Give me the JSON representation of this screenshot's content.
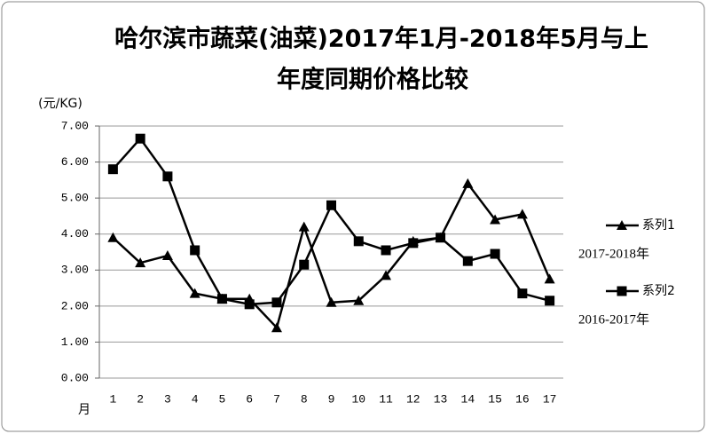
{
  "chart_data": {
    "type": "line",
    "title": [
      "哈尔滨市蔬菜(油菜)2017年1月-2018年5月与上",
      "年度同期价格比较"
    ],
    "y_label": "(元/KG)",
    "x_label": "月",
    "categories": [
      "1",
      "2",
      "3",
      "4",
      "5",
      "6",
      "7",
      "8",
      "9",
      "10",
      "11",
      "12",
      "13",
      "14",
      "15",
      "16",
      "17"
    ],
    "series": [
      {
        "name": "系列1",
        "color": "#000000",
        "marker": "triangle",
        "note": "2017-2018年",
        "values": [
          3.9,
          3.2,
          3.4,
          2.35,
          2.2,
          2.2,
          1.4,
          4.2,
          2.1,
          2.15,
          2.85,
          3.8,
          3.9,
          5.4,
          4.4,
          4.55,
          2.75
        ]
      },
      {
        "name": "系列2",
        "color": "#000000",
        "marker": "square",
        "note": "2016-2017年",
        "values": [
          5.8,
          6.65,
          5.6,
          3.55,
          2.2,
          2.05,
          2.1,
          3.15,
          4.8,
          3.8,
          3.55,
          3.75,
          3.9,
          3.25,
          3.45,
          2.35,
          2.15
        ]
      }
    ],
    "ylim": [
      0,
      7
    ],
    "yticks": [
      {
        "value": 0,
        "label": "0.00"
      },
      {
        "value": 1,
        "label": "1.00"
      },
      {
        "value": 2,
        "label": "2.00"
      },
      {
        "value": 3,
        "label": "3.00"
      },
      {
        "value": 4,
        "label": "4.00"
      },
      {
        "value": 5,
        "label": "5.00"
      },
      {
        "value": 6,
        "label": "6.00"
      },
      {
        "value": 7,
        "label": "7.00"
      }
    ],
    "grid": true
  }
}
